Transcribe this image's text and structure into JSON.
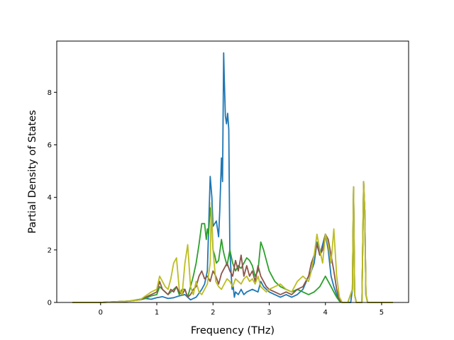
{
  "chart_data": {
    "type": "line",
    "title": "",
    "xlabel": "Frequency (THz)",
    "ylabel": "Partial Density of States",
    "xlim": [
      -0.78,
      5.48
    ],
    "ylim": [
      0,
      9.95
    ],
    "xticks": [
      0,
      1,
      2,
      3,
      4,
      5
    ],
    "yticks": [
      0,
      2,
      4,
      6,
      8
    ],
    "grid": false,
    "legend": "none",
    "series": [
      {
        "color": "#1f77b4",
        "x": [
          -0.5,
          0.0,
          0.2,
          0.5,
          0.7,
          0.8,
          0.9,
          1.0,
          1.05,
          1.1,
          1.2,
          1.3,
          1.4,
          1.5,
          1.6,
          1.7,
          1.8,
          1.85,
          1.9,
          1.95,
          1.98,
          2.0,
          2.03,
          2.06,
          2.08,
          2.1,
          2.12,
          2.15,
          2.17,
          2.19,
          2.2,
          2.22,
          2.24,
          2.26,
          2.28,
          2.3,
          2.32,
          2.34,
          2.36,
          2.38,
          2.4,
          2.45,
          2.5,
          2.55,
          2.6,
          2.7,
          2.8,
          2.85,
          2.9,
          3.0,
          3.1,
          3.2,
          3.3,
          3.4,
          3.5,
          3.6,
          3.7,
          3.75,
          3.8,
          3.85,
          3.88,
          3.9,
          3.95,
          4.0,
          4.05,
          4.1,
          4.15,
          4.2,
          4.25,
          4.3,
          4.35,
          4.4,
          4.45,
          4.48,
          4.5,
          4.52,
          4.55,
          4.6,
          4.65,
          4.68,
          4.7,
          4.72,
          4.75,
          4.8,
          5.0,
          5.2
        ],
        "y": [
          0,
          0,
          0.02,
          0.05,
          0.1,
          0.15,
          0.12,
          0.18,
          0.2,
          0.22,
          0.15,
          0.18,
          0.25,
          0.3,
          0.1,
          0.2,
          0.5,
          0.7,
          1.2,
          4.8,
          4.0,
          2.9,
          3.0,
          3.1,
          2.8,
          2.5,
          3.5,
          5.5,
          4.6,
          9.5,
          8.6,
          7.1,
          6.8,
          7.2,
          6.6,
          2.0,
          1.2,
          0.5,
          0.6,
          0.2,
          0.4,
          0.3,
          0.5,
          0.3,
          0.4,
          0.5,
          0.4,
          0.8,
          0.6,
          0.4,
          0.3,
          0.2,
          0.3,
          0.2,
          0.3,
          0.5,
          1.0,
          1.2,
          1.5,
          2.3,
          2.0,
          1.8,
          2.2,
          2.6,
          2.0,
          1.0,
          0.6,
          0.3,
          0.05,
          0,
          0,
          0,
          0,
          0.5,
          4.4,
          0.3,
          0,
          0,
          0,
          4.6,
          3.5,
          0.3,
          0,
          0,
          0,
          0
        ]
      },
      {
        "color": "#2ca02c",
        "x": [
          -0.5,
          0.0,
          0.2,
          0.5,
          0.7,
          0.8,
          0.9,
          1.0,
          1.05,
          1.1,
          1.15,
          1.2,
          1.3,
          1.35,
          1.4,
          1.45,
          1.5,
          1.55,
          1.6,
          1.65,
          1.7,
          1.75,
          1.8,
          1.85,
          1.88,
          1.9,
          1.92,
          1.95,
          1.98,
          2.0,
          2.03,
          2.06,
          2.1,
          2.15,
          2.18,
          2.2,
          2.25,
          2.3,
          2.35,
          2.4,
          2.45,
          2.5,
          2.55,
          2.6,
          2.65,
          2.7,
          2.75,
          2.8,
          2.85,
          2.9,
          2.95,
          3.0,
          3.1,
          3.2,
          3.3,
          3.4,
          3.5,
          3.6,
          3.7,
          3.8,
          3.85,
          3.9,
          3.95,
          4.0,
          4.05,
          4.1,
          4.15,
          4.2,
          4.25,
          4.3,
          4.4,
          4.48,
          4.5,
          4.52,
          4.55,
          4.65,
          4.68,
          4.7,
          4.72,
          4.75,
          5.0,
          5.2
        ],
        "y": [
          0,
          0,
          0.02,
          0.05,
          0.12,
          0.15,
          0.25,
          0.3,
          0.6,
          0.5,
          0.4,
          0.3,
          0.5,
          0.6,
          0.3,
          0.5,
          0.5,
          0.2,
          0.6,
          1.0,
          1.5,
          2.2,
          3.0,
          3.0,
          2.4,
          2.8,
          2.6,
          3.6,
          3.0,
          2.0,
          1.8,
          1.5,
          1.6,
          2.4,
          2.0,
          1.8,
          1.4,
          2.0,
          1.5,
          1.2,
          1.4,
          1.3,
          1.5,
          1.7,
          1.6,
          1.4,
          1.0,
          1.2,
          2.3,
          2.0,
          1.6,
          1.2,
          0.8,
          0.6,
          0.5,
          0.4,
          0.5,
          0.4,
          0.3,
          0.4,
          0.5,
          0.6,
          0.8,
          1.0,
          0.8,
          0.6,
          0.4,
          0.2,
          0.05,
          0,
          0,
          0.5,
          4.3,
          0.3,
          0,
          0,
          4.5,
          3.5,
          0.3,
          0,
          0,
          0
        ]
      },
      {
        "color": "#8c564b",
        "x": [
          -0.5,
          0.0,
          0.2,
          0.5,
          0.7,
          0.8,
          0.9,
          1.0,
          1.05,
          1.1,
          1.15,
          1.2,
          1.25,
          1.3,
          1.35,
          1.4,
          1.45,
          1.5,
          1.55,
          1.6,
          1.65,
          1.7,
          1.75,
          1.8,
          1.85,
          1.9,
          1.95,
          2.0,
          2.05,
          2.1,
          2.15,
          2.2,
          2.25,
          2.3,
          2.35,
          2.4,
          2.45,
          2.5,
          2.55,
          2.6,
          2.65,
          2.7,
          2.75,
          2.8,
          2.85,
          2.9,
          2.95,
          3.0,
          3.1,
          3.2,
          3.3,
          3.4,
          3.5,
          3.6,
          3.7,
          3.75,
          3.8,
          3.85,
          3.9,
          3.95,
          4.0,
          4.05,
          4.1,
          4.15,
          4.2,
          4.25,
          4.3,
          4.4,
          4.48,
          4.5,
          4.52,
          4.55,
          4.65,
          4.68,
          4.7,
          4.72,
          4.75,
          5.0,
          5.2
        ],
        "y": [
          0,
          0,
          0.02,
          0.05,
          0.1,
          0.2,
          0.3,
          0.4,
          0.8,
          0.5,
          0.4,
          0.3,
          0.5,
          0.4,
          0.6,
          0.4,
          0.3,
          0.5,
          0.2,
          0.3,
          0.5,
          0.6,
          1.0,
          1.2,
          0.9,
          1.0,
          0.8,
          1.2,
          1.0,
          0.7,
          1.1,
          1.3,
          1.5,
          1.2,
          1.0,
          1.6,
          1.2,
          1.8,
          1.0,
          1.4,
          1.0,
          1.2,
          0.8,
          1.4,
          1.0,
          0.8,
          0.6,
          0.5,
          0.4,
          0.3,
          0.4,
          0.3,
          0.5,
          0.6,
          1.0,
          1.5,
          1.8,
          2.2,
          1.8,
          2.0,
          2.6,
          2.4,
          1.8,
          1.2,
          0.5,
          0.1,
          0,
          0,
          0.5,
          4.4,
          0.3,
          0,
          0,
          4.6,
          3.5,
          0.3,
          0,
          0,
          0
        ]
      },
      {
        "color": "#bcbd22",
        "x": [
          -0.5,
          0.0,
          0.2,
          0.5,
          0.7,
          0.8,
          0.9,
          1.0,
          1.05,
          1.1,
          1.15,
          1.2,
          1.25,
          1.3,
          1.35,
          1.4,
          1.45,
          1.5,
          1.55,
          1.6,
          1.65,
          1.7,
          1.75,
          1.8,
          1.85,
          1.9,
          1.95,
          1.97,
          2.0,
          2.05,
          2.1,
          2.15,
          2.2,
          2.25,
          2.3,
          2.35,
          2.4,
          2.45,
          2.5,
          2.55,
          2.6,
          2.65,
          2.7,
          2.75,
          2.8,
          2.85,
          2.9,
          2.95,
          3.0,
          3.1,
          3.2,
          3.3,
          3.4,
          3.5,
          3.6,
          3.7,
          3.75,
          3.8,
          3.85,
          3.9,
          3.95,
          4.0,
          4.05,
          4.1,
          4.15,
          4.2,
          4.25,
          4.3,
          4.4,
          4.48,
          4.5,
          4.52,
          4.55,
          4.65,
          4.68,
          4.7,
          4.72,
          4.75,
          5.0,
          5.2
        ],
        "y": [
          0,
          0,
          0.02,
          0.05,
          0.1,
          0.25,
          0.4,
          0.5,
          1.0,
          0.8,
          0.6,
          0.5,
          0.9,
          1.5,
          1.7,
          0.5,
          0.3,
          1.5,
          2.2,
          0.6,
          0.3,
          0.8,
          0.4,
          0.3,
          0.5,
          0.7,
          1.5,
          3.8,
          2.0,
          0.8,
          0.6,
          0.5,
          0.7,
          0.9,
          0.8,
          0.6,
          0.9,
          0.8,
          0.7,
          0.9,
          1.0,
          0.8,
          0.9,
          0.7,
          1.0,
          0.6,
          0.5,
          0.4,
          0.5,
          0.6,
          0.7,
          0.5,
          0.4,
          0.8,
          1.0,
          0.8,
          1.2,
          1.8,
          2.6,
          2.0,
          1.5,
          2.6,
          2.2,
          1.5,
          2.8,
          1.0,
          0.2,
          0,
          0,
          0.5,
          4.4,
          0.3,
          0,
          0,
          4.6,
          3.5,
          0.3,
          0,
          0,
          0
        ]
      }
    ]
  }
}
